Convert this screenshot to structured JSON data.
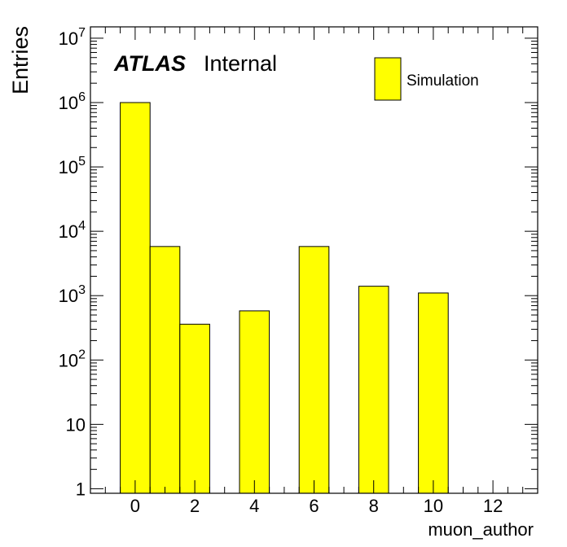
{
  "chart_data": {
    "type": "bar",
    "title": "",
    "xlabel": "muon_author",
    "ylabel": "Entries",
    "yscale": "log",
    "xlim": [
      -1.5,
      13.5
    ],
    "ylim": [
      0.85,
      15000000
    ],
    "x_ticks": [
      "0",
      "2",
      "4",
      "6",
      "8",
      "10",
      "12"
    ],
    "y_ticks": [
      {
        "base": "1",
        "exp": ""
      },
      {
        "base": "10",
        "exp": ""
      },
      {
        "base": "10",
        "exp": "2"
      },
      {
        "base": "10",
        "exp": "3"
      },
      {
        "base": "10",
        "exp": "4"
      },
      {
        "base": "10",
        "exp": "5"
      },
      {
        "base": "10",
        "exp": "6"
      },
      {
        "base": "10",
        "exp": "7"
      }
    ],
    "bins": [
      {
        "x": 0,
        "value": 1000000
      },
      {
        "x": 1,
        "value": 5800
      },
      {
        "x": 2,
        "value": 360
      },
      {
        "x": 4,
        "value": 580
      },
      {
        "x": 6,
        "value": 5800
      },
      {
        "x": 8,
        "value": 1400
      },
      {
        "x": 10,
        "value": 1100
      }
    ],
    "bar_color": "#ffff00",
    "edge_color": "#000000",
    "legend": {
      "position": "top-right",
      "entries": [
        "Simulation"
      ]
    },
    "atlas_label": "ATLAS",
    "atlas_sublabel": "Internal",
    "grid": false
  }
}
